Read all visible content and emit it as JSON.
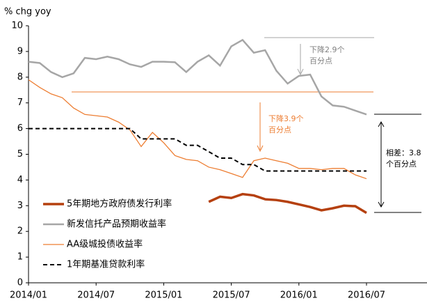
{
  "chart_data": {
    "type": "line",
    "y_label": "% chg yoy",
    "categories": [
      "2014/01",
      null,
      null,
      null,
      null,
      null,
      "2014/07",
      null,
      null,
      null,
      null,
      null,
      "2015/01",
      null,
      null,
      null,
      null,
      null,
      "2015/07",
      null,
      null,
      null,
      null,
      null,
      "2016/01",
      null,
      null,
      null,
      null,
      null,
      "2016/07"
    ],
    "series": [
      {
        "name": "5年期地方政府债发行利率",
        "color": "#b5400f",
        "width": 3.5,
        "dash": false,
        "values": [
          null,
          null,
          null,
          null,
          null,
          null,
          null,
          null,
          null,
          null,
          null,
          null,
          null,
          null,
          null,
          null,
          3.15,
          3.35,
          3.3,
          3.45,
          3.4,
          3.25,
          3.22,
          3.15,
          3.05,
          2.95,
          2.82,
          2.9,
          3.0,
          2.98,
          2.72
        ]
      },
      {
        "name": "新发信托产品预期收益率",
        "color": "#a6a6a6",
        "width": 2.5,
        "dash": false,
        "values": [
          8.6,
          8.55,
          8.2,
          8.0,
          8.15,
          8.75,
          8.7,
          8.8,
          8.7,
          8.5,
          8.4,
          8.6,
          8.6,
          8.58,
          8.2,
          8.6,
          8.85,
          8.45,
          9.2,
          9.45,
          8.95,
          9.05,
          8.25,
          7.75,
          8.05,
          8.1,
          7.25,
          6.9,
          6.85,
          6.7,
          6.55
        ]
      },
      {
        "name": "AA级城投债收益率",
        "color": "#ed7d31",
        "width": 1.3,
        "dash": false,
        "values": [
          7.9,
          7.6,
          7.35,
          7.2,
          6.8,
          6.55,
          6.5,
          6.45,
          6.25,
          5.95,
          5.3,
          5.85,
          5.45,
          4.95,
          4.8,
          4.75,
          4.5,
          4.4,
          4.25,
          4.1,
          4.75,
          4.85,
          4.75,
          4.65,
          4.45,
          4.45,
          4.4,
          4.45,
          4.45,
          4.2,
          4.05
        ]
      },
      {
        "name": "1年期基准贷款利率",
        "color": "#000000",
        "width": 2,
        "dash": true,
        "values": [
          6.0,
          6.0,
          6.0,
          6.0,
          6.0,
          6.0,
          6.0,
          6.0,
          6.0,
          6.0,
          5.6,
          5.6,
          5.6,
          5.6,
          5.35,
          5.35,
          5.1,
          4.85,
          4.85,
          4.6,
          4.6,
          4.35,
          4.35,
          4.35,
          4.35,
          4.35,
          4.35,
          4.35,
          4.35,
          4.35,
          4.35
        ]
      }
    ],
    "ylim": [
      0,
      10
    ],
    "yticks": [
      0,
      1,
      2,
      3,
      4,
      5,
      6,
      7,
      8,
      9,
      10
    ],
    "annotations": [
      {
        "lines": [
          "下降2.9个",
          "百分点"
        ],
        "color": "#808080"
      },
      {
        "lines": [
          "下降3.9个",
          "百分点"
        ],
        "color": "#ed7d31"
      },
      {
        "lines": [
          "相差：3.8",
          "个百分点"
        ],
        "color": "#000000"
      }
    ]
  }
}
